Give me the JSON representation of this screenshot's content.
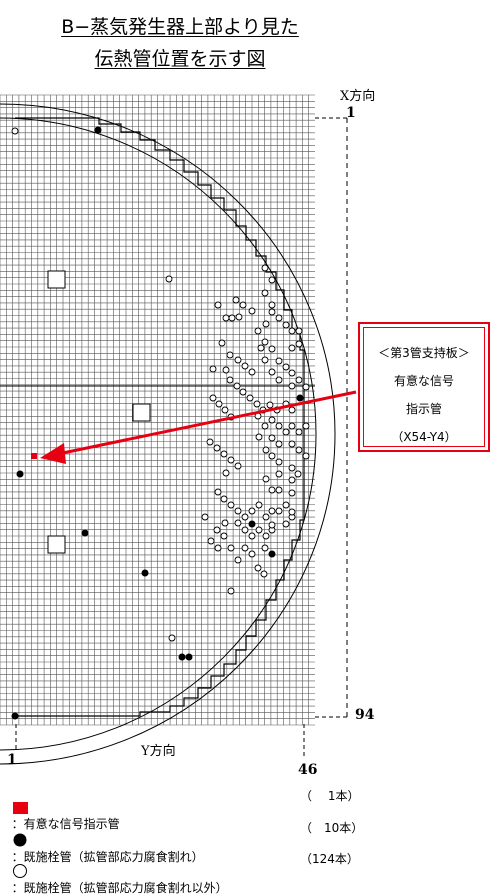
{
  "title": {
    "line1": "B−蒸気発生器上部より見た",
    "line2": "伝熱管位置を示す図"
  },
  "axes": {
    "x_label": "X方向",
    "x_start": "1",
    "x_end": "94",
    "y_label": "Y方向",
    "y_start": "1",
    "y_end": "46"
  },
  "callout": {
    "line1": "＜第3管支持板＞",
    "line2": "有意な信号",
    "line3": "指示管",
    "line4": "（X54-Y4）"
  },
  "legend": [
    {
      "symbol": "red-square-icon",
      "text": "：有意な信号指示管",
      "count": "（　 1本）"
    },
    {
      "symbol": "filled-circle-icon",
      "text": "：既施栓管（拡管部応力腐食割れ）",
      "count": "（　10本）"
    },
    {
      "symbol": "open-circle-icon",
      "text": "：既施栓管（拡管部応力腐食割れ以外）",
      "count": "（124本）"
    }
  ],
  "colors": {
    "signal": "#e60012",
    "grid": "#555555",
    "callout_border": "#e60012"
  }
}
